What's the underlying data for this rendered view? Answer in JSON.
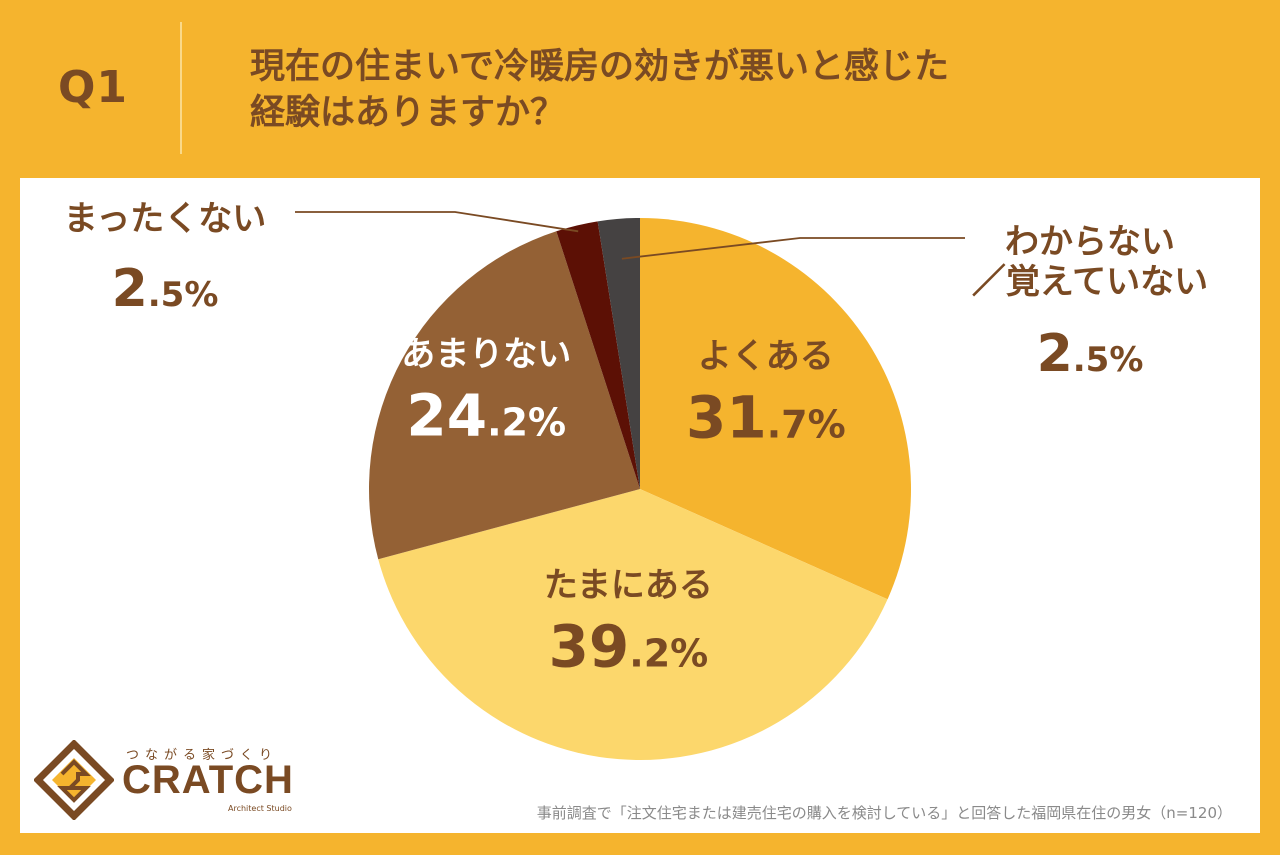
{
  "header": {
    "q_label": "Q1",
    "question_line1": "現在の住まいで冷暖房の効きが悪いと感じた",
    "question_line2": "経験はありますか？"
  },
  "colors": {
    "background": "#F5B42E",
    "panel": "#FFFFFF",
    "label_brown": "#7A4A23"
  },
  "chart_data": {
    "type": "pie",
    "title": "",
    "slices": [
      {
        "label": "よくある",
        "value": 31.7,
        "display_int": "31",
        "display_dec": ".7%",
        "color": "#F5B42E",
        "text_color": "#7A4A23",
        "label_position": "inside"
      },
      {
        "label": "たまにある",
        "value": 39.2,
        "display_int": "39",
        "display_dec": ".2%",
        "color": "#FCD76C",
        "text_color": "#7A4A23",
        "label_position": "inside"
      },
      {
        "label": "あまりない",
        "value": 24.2,
        "display_int": "24",
        "display_dec": ".2%",
        "color": "#946135",
        "text_color": "#FFFFFF",
        "label_position": "inside"
      },
      {
        "label": "まったくない",
        "value": 2.5,
        "display_int": "2",
        "display_dec": ".5%",
        "color": "#5C1005",
        "text_color": "#7A4A23",
        "label_position": "outside-left"
      },
      {
        "label": "わからない／覚えていない",
        "label_lines": [
          "わからない",
          "／覚えていない"
        ],
        "value": 2.5,
        "display_int": "2",
        "display_dec": ".5%",
        "color": "#454242",
        "text_color": "#7A4A23",
        "label_position": "outside-right"
      }
    ],
    "start_angle_deg": 0,
    "direction": "clockwise"
  },
  "footnote": "事前調査で「注文住宅または建売住宅の購入を検討している」と回答した福岡県在住の男女（n=120）",
  "logo": {
    "tagline": "つながる家づくり",
    "name": "CRATCH",
    "sub": "Architect Studio"
  }
}
